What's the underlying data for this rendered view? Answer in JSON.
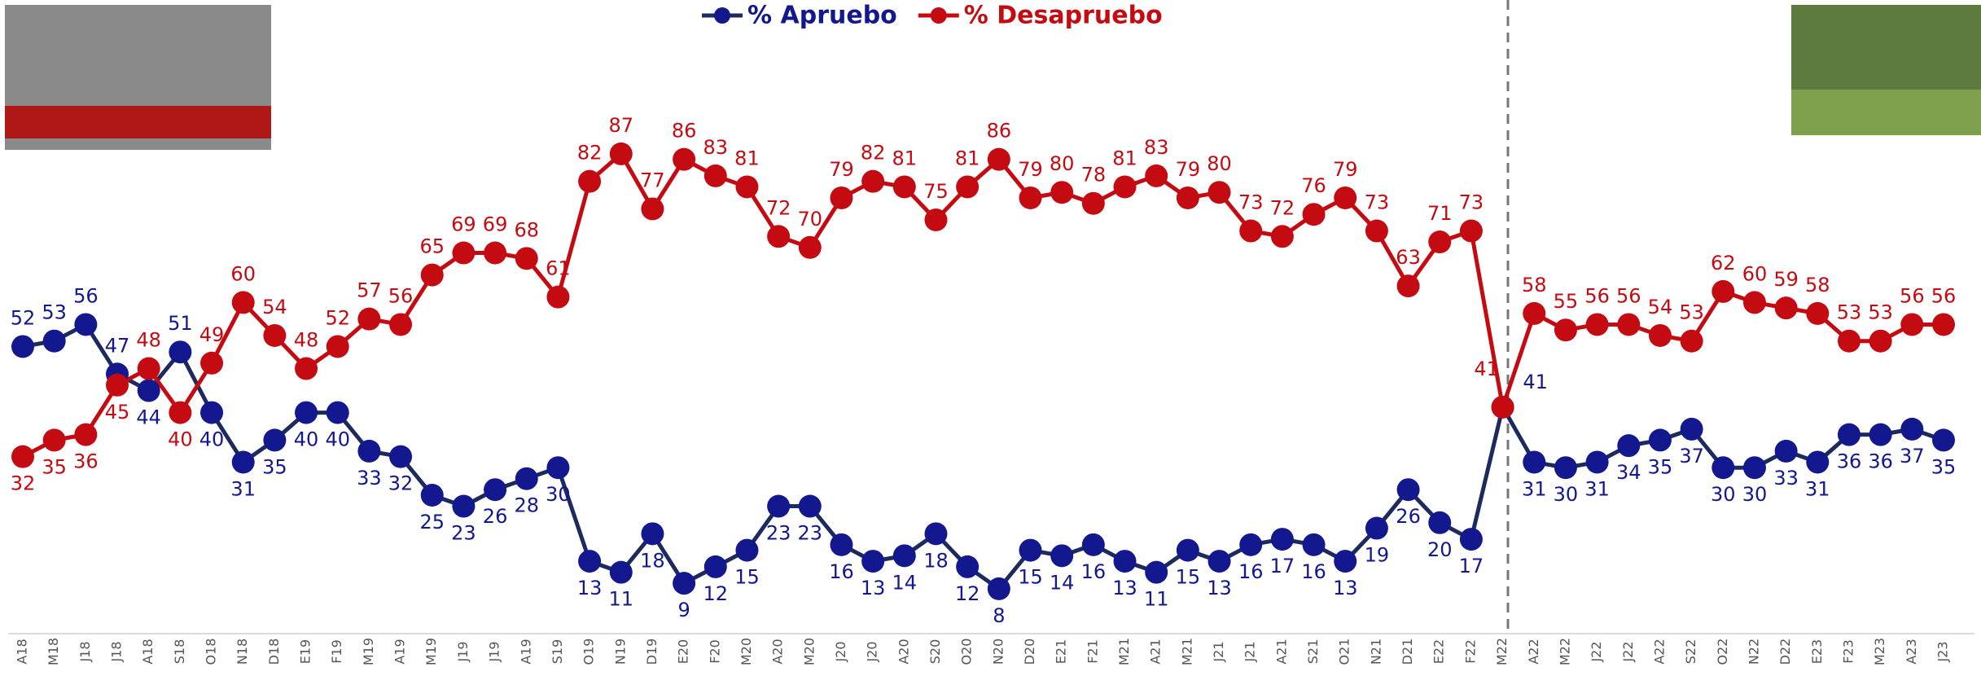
{
  "chart_data": {
    "type": "line",
    "categories": [
      "A18",
      "M18",
      "J18",
      "J18",
      "A18",
      "S18",
      "O18",
      "N18",
      "D18",
      "E19",
      "F19",
      "M19",
      "A19",
      "M19",
      "J19",
      "J19",
      "A19",
      "S19",
      "O19",
      "N19",
      "D19",
      "E20",
      "F20",
      "M20",
      "A20",
      "M20",
      "J20",
      "J20",
      "A20",
      "S20",
      "O20",
      "N20",
      "D20",
      "E21",
      "F21",
      "M21",
      "A21",
      "M21",
      "J21",
      "J21",
      "A21",
      "S21",
      "O21",
      "N21",
      "D21",
      "E22",
      "F22",
      "M22",
      "A22",
      "M22",
      "J22",
      "J22",
      "A22",
      "S22",
      "O22",
      "N22",
      "D22",
      "E23",
      "F23",
      "M23",
      "A23",
      "J23"
    ],
    "series": [
      {
        "name": "% Apruebo",
        "color": "#14188f",
        "line_color": "#1c2a5e",
        "values": [
          52,
          53,
          56,
          47,
          44,
          51,
          40,
          31,
          35,
          40,
          40,
          33,
          32,
          25,
          23,
          26,
          28,
          30,
          13,
          11,
          18,
          9,
          12,
          15,
          23,
          23,
          16,
          13,
          14,
          18,
          12,
          8,
          15,
          14,
          16,
          13,
          11,
          15,
          13,
          16,
          17,
          16,
          13,
          19,
          26,
          20,
          17,
          41,
          31,
          30,
          31,
          34,
          35,
          37,
          30,
          30,
          33,
          31,
          36,
          36,
          37,
          35
        ]
      },
      {
        "name": "% Desapruebo",
        "color": "#c40b12",
        "line_color": "#c40b12",
        "values": [
          32,
          35,
          36,
          45,
          48,
          40,
          49,
          60,
          54,
          48,
          52,
          57,
          56,
          65,
          69,
          69,
          68,
          61,
          82,
          87,
          77,
          86,
          83,
          81,
          72,
          70,
          79,
          82,
          81,
          75,
          81,
          86,
          79,
          80,
          78,
          81,
          83,
          79,
          80,
          73,
          72,
          76,
          79,
          73,
          63,
          71,
          73,
          41,
          58,
          55,
          56,
          56,
          54,
          53,
          62,
          60,
          59,
          58,
          53,
          53,
          56,
          56
        ]
      }
    ],
    "ylim": [
      0,
      100
    ]
  }
}
